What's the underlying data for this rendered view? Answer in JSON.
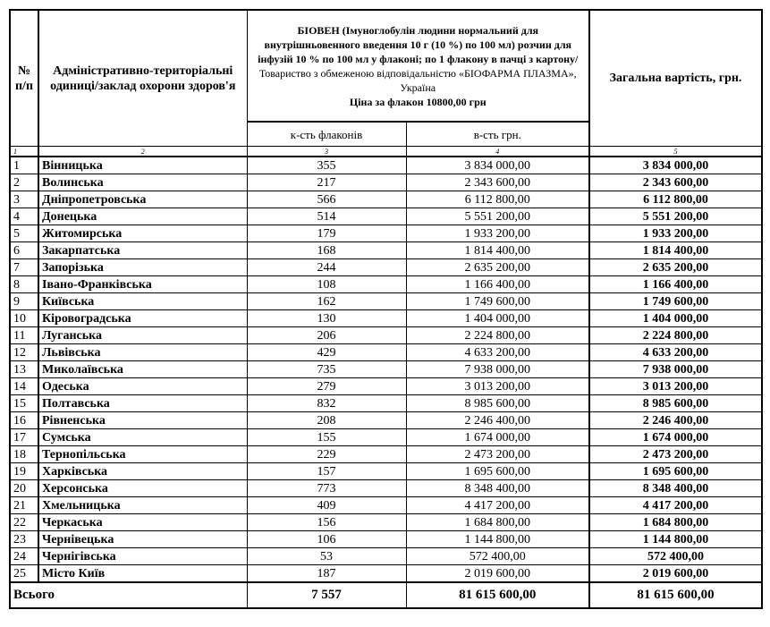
{
  "header": {
    "num": "№ п/п",
    "region": "Адміністративно-територіальні одиниці/заклад охорони здоров'я",
    "product": {
      "name": "БІОВЕН (Імуноглобулін людини нормальний для внутрішньовенного введення 10 г (10 %) по 100 мл) розчин для інфузій 10 % по 100 мл  у флаконі; по 1 флакону в пачці з картону/",
      "supplier": "Товариство з обмеженою відповідальністю «БІОФАРМА ПЛАЗМА», Україна",
      "price": "Ціна за флакон 10800,00 грн"
    },
    "subcols": [
      "к-сть флаконів",
      "в-сть грн."
    ],
    "total": "Загальна вартість, грн."
  },
  "index_row": [
    "1",
    "2",
    "3",
    "4",
    "5"
  ],
  "rows": [
    [
      "1",
      "Вінницька",
      "355",
      "3 834 000,00",
      "3 834 000,00"
    ],
    [
      "2",
      "Волинська",
      "217",
      "2 343 600,00",
      "2 343 600,00"
    ],
    [
      "3",
      "Дніпропетровська",
      "566",
      "6 112 800,00",
      "6 112 800,00"
    ],
    [
      "4",
      "Донецька",
      "514",
      "5 551 200,00",
      "5 551 200,00"
    ],
    [
      "5",
      "Житомирська",
      "179",
      "1 933 200,00",
      "1 933 200,00"
    ],
    [
      "6",
      "Закарпатська",
      "168",
      "1 814 400,00",
      "1 814 400,00"
    ],
    [
      "7",
      "Запорізька",
      "244",
      "2 635 200,00",
      "2 635 200,00"
    ],
    [
      "8",
      "Івано-Франківська",
      "108",
      "1 166 400,00",
      "1 166 400,00"
    ],
    [
      "9",
      "Київська",
      "162",
      "1 749 600,00",
      "1 749 600,00"
    ],
    [
      "10",
      "Кіровоградська",
      "130",
      "1 404 000,00",
      "1 404 000,00"
    ],
    [
      "11",
      "Луганська",
      "206",
      "2 224 800,00",
      "2 224 800,00"
    ],
    [
      "12",
      "Львівська",
      "429",
      "4 633 200,00",
      "4 633 200,00"
    ],
    [
      "13",
      "Миколаївська",
      "735",
      "7 938 000,00",
      "7 938 000,00"
    ],
    [
      "14",
      "Одеська",
      "279",
      "3 013 200,00",
      "3 013 200,00"
    ],
    [
      "15",
      "Полтавська",
      "832",
      "8 985 600,00",
      "8 985 600,00"
    ],
    [
      "16",
      "Рівненська",
      "208",
      "2 246 400,00",
      "2 246 400,00"
    ],
    [
      "17",
      "Сумська",
      "155",
      "1 674 000,00",
      "1 674 000,00"
    ],
    [
      "18",
      "Тернопільська",
      "229",
      "2 473 200,00",
      "2 473 200,00"
    ],
    [
      "19",
      "Харківська",
      "157",
      "1 695 600,00",
      "1 695 600,00"
    ],
    [
      "20",
      "Херсонська",
      "773",
      "8 348 400,00",
      "8 348 400,00"
    ],
    [
      "21",
      "Хмельницька",
      "409",
      "4 417 200,00",
      "4 417 200,00"
    ],
    [
      "22",
      "Черкаська",
      "156",
      "1 684 800,00",
      "1 684 800,00"
    ],
    [
      "23",
      "Чернівецька",
      "106",
      "1 144 800,00",
      "1 144 800,00"
    ],
    [
      "24",
      "Чернігівська",
      "53",
      "572 400,00",
      "572 400,00"
    ],
    [
      "25",
      "Місто Київ",
      "187",
      "2 019 600,00",
      "2 019 600,00"
    ]
  ],
  "footer": {
    "label": "Всього",
    "qty": "7 557",
    "amount": "81 615 600,00",
    "total": "81 615 600,00"
  }
}
